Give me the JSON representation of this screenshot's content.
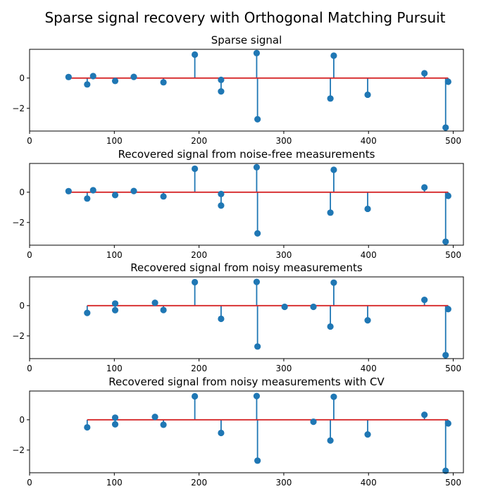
{
  "suptitle": "Sparse signal recovery with Orthogonal Matching Pursuit",
  "colors": {
    "stem": "#1f77b4",
    "baseline": "#d62728"
  },
  "chart_data": [
    {
      "type": "stem",
      "title": "Sparse signal",
      "xlim": [
        0,
        512
      ],
      "ylim": [
        -3.5,
        1.9
      ],
      "xticks": [
        0,
        100,
        200,
        300,
        400,
        500
      ],
      "yticks": [
        -2,
        0
      ],
      "baseline": [
        46,
        494
      ],
      "points": [
        {
          "x": 46,
          "y": 0.07
        },
        {
          "x": 68,
          "y": -0.42
        },
        {
          "x": 75,
          "y": 0.13
        },
        {
          "x": 101,
          "y": -0.19
        },
        {
          "x": 123,
          "y": 0.08
        },
        {
          "x": 158,
          "y": -0.28
        },
        {
          "x": 195,
          "y": 1.55
        },
        {
          "x": 226,
          "y": -0.12
        },
        {
          "x": 226,
          "y": -0.88
        },
        {
          "x": 268,
          "y": 1.65
        },
        {
          "x": 269,
          "y": -2.72
        },
        {
          "x": 355,
          "y": -1.35
        },
        {
          "x": 359,
          "y": 1.48
        },
        {
          "x": 399,
          "y": -1.1
        },
        {
          "x": 466,
          "y": 0.32
        },
        {
          "x": 491,
          "y": -3.27
        },
        {
          "x": 494,
          "y": -0.24
        }
      ]
    },
    {
      "type": "stem",
      "title": "Recovered signal from noise-free measurements",
      "xlim": [
        0,
        512
      ],
      "ylim": [
        -3.5,
        1.9
      ],
      "xticks": [
        0,
        100,
        200,
        300,
        400,
        500
      ],
      "yticks": [
        -2,
        0
      ],
      "baseline": [
        46,
        494
      ],
      "points": [
        {
          "x": 46,
          "y": 0.07
        },
        {
          "x": 68,
          "y": -0.42
        },
        {
          "x": 75,
          "y": 0.13
        },
        {
          "x": 101,
          "y": -0.19
        },
        {
          "x": 123,
          "y": 0.08
        },
        {
          "x": 158,
          "y": -0.28
        },
        {
          "x": 195,
          "y": 1.55
        },
        {
          "x": 226,
          "y": -0.12
        },
        {
          "x": 226,
          "y": -0.88
        },
        {
          "x": 268,
          "y": 1.65
        },
        {
          "x": 269,
          "y": -2.72
        },
        {
          "x": 355,
          "y": -1.35
        },
        {
          "x": 359,
          "y": 1.48
        },
        {
          "x": 399,
          "y": -1.1
        },
        {
          "x": 466,
          "y": 0.32
        },
        {
          "x": 491,
          "y": -3.27
        },
        {
          "x": 494,
          "y": -0.24
        }
      ]
    },
    {
      "type": "stem",
      "title": "Recovered signal from noisy measurements",
      "xlim": [
        0,
        512
      ],
      "ylim": [
        -3.5,
        1.9
      ],
      "xticks": [
        0,
        100,
        200,
        300,
        400,
        500
      ],
      "yticks": [
        -2,
        0
      ],
      "baseline": [
        68,
        494
      ],
      "points": [
        {
          "x": 68,
          "y": -0.48
        },
        {
          "x": 101,
          "y": 0.14
        },
        {
          "x": 101,
          "y": -0.3
        },
        {
          "x": 148,
          "y": 0.19
        },
        {
          "x": 158,
          "y": -0.29
        },
        {
          "x": 195,
          "y": 1.55
        },
        {
          "x": 226,
          "y": -0.87
        },
        {
          "x": 268,
          "y": 1.57
        },
        {
          "x": 269,
          "y": -2.7
        },
        {
          "x": 301,
          "y": -0.08
        },
        {
          "x": 335,
          "y": -0.08
        },
        {
          "x": 355,
          "y": -1.38
        },
        {
          "x": 359,
          "y": 1.52
        },
        {
          "x": 399,
          "y": -0.97
        },
        {
          "x": 466,
          "y": 0.38
        },
        {
          "x": 491,
          "y": -3.27
        },
        {
          "x": 494,
          "y": -0.23
        }
      ]
    },
    {
      "type": "stem",
      "title": "Recovered signal from noisy measurements with CV",
      "xlim": [
        0,
        512
      ],
      "ylim": [
        -3.5,
        1.9
      ],
      "xticks": [
        0,
        100,
        200,
        300,
        400,
        500
      ],
      "yticks": [
        -2,
        0
      ],
      "baseline": [
        68,
        494
      ],
      "points": [
        {
          "x": 68,
          "y": -0.5
        },
        {
          "x": 101,
          "y": 0.14
        },
        {
          "x": 101,
          "y": -0.3
        },
        {
          "x": 148,
          "y": 0.19
        },
        {
          "x": 158,
          "y": -0.33
        },
        {
          "x": 195,
          "y": 1.55
        },
        {
          "x": 226,
          "y": -0.87
        },
        {
          "x": 268,
          "y": 1.57
        },
        {
          "x": 269,
          "y": -2.7
        },
        {
          "x": 335,
          "y": -0.13
        },
        {
          "x": 355,
          "y": -1.37
        },
        {
          "x": 359,
          "y": 1.52
        },
        {
          "x": 399,
          "y": -0.97
        },
        {
          "x": 466,
          "y": 0.33
        },
        {
          "x": 491,
          "y": -3.37
        },
        {
          "x": 494,
          "y": -0.24
        }
      ]
    }
  ]
}
